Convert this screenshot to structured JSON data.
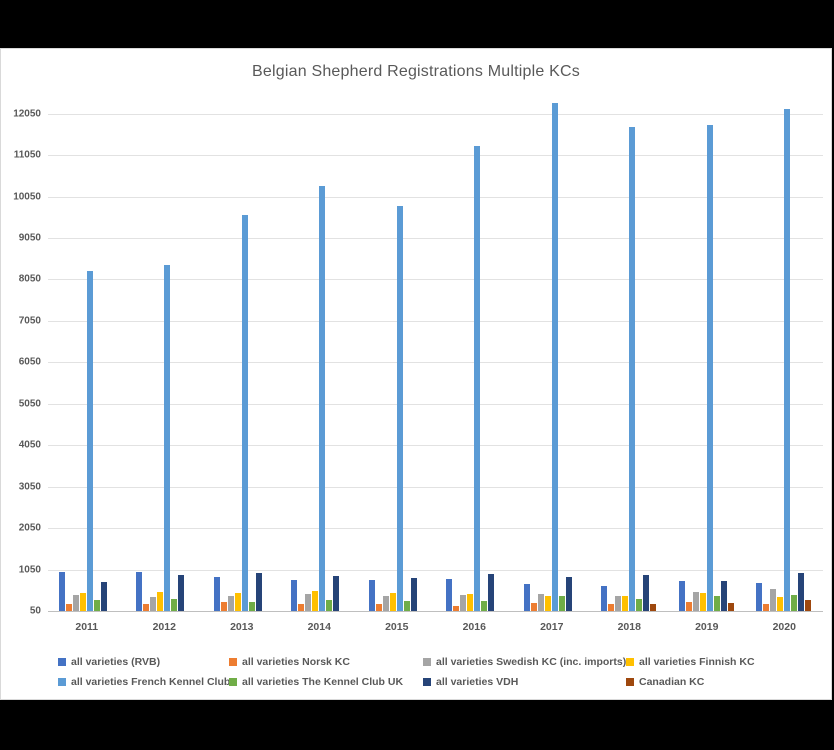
{
  "chart_data": {
    "type": "bar",
    "title": "Belgian Shepherd Registrations Multiple KCs",
    "categories": [
      "2011",
      "2012",
      "2013",
      "2014",
      "2015",
      "2016",
      "2017",
      "2018",
      "2019",
      "2020"
    ],
    "series": [
      {
        "name": "all varieties (RVB)",
        "color": "#4472C4",
        "values": [
          990,
          990,
          870,
          810,
          810,
          820,
          690,
          650,
          770,
          720
        ]
      },
      {
        "name": "all varieties Norsk KC",
        "color": "#ED7D31",
        "values": [
          220,
          210,
          270,
          230,
          210,
          170,
          250,
          210,
          270,
          220
        ]
      },
      {
        "name": "all varieties Swedish KC (inc. imports)",
        "color": "#A5A5A5",
        "values": [
          430,
          390,
          410,
          470,
          410,
          430,
          470,
          410,
          510,
          590
        ]
      },
      {
        "name": "all varieties Finnish KC",
        "color": "#FFC000",
        "values": [
          490,
          510,
          490,
          530,
          490,
          450,
          410,
          410,
          490,
          390
        ]
      },
      {
        "name": "all varieties French Kennel Club",
        "color": "#5B9BD5",
        "values": [
          8250,
          8400,
          9600,
          10300,
          9830,
          11270,
          12320,
          11740,
          11770,
          12160
        ]
      },
      {
        "name": "all varieties The Kennel Club UK",
        "color": "#70AD47",
        "values": [
          310,
          330,
          270,
          320,
          300,
          290,
          410,
          330,
          410,
          430
        ]
      },
      {
        "name": "all varieties VDH",
        "color": "#264478",
        "values": [
          750,
          920,
          970,
          890,
          840,
          945,
          880,
          910,
          770,
          960
        ]
      },
      {
        "name": "Canadian KC",
        "color": "#9E480E",
        "values": [
          null,
          null,
          null,
          null,
          null,
          null,
          null,
          230,
          250,
          310
        ]
      }
    ],
    "yticks": [
      50,
      1050,
      2050,
      3050,
      4050,
      5050,
      6050,
      7050,
      8050,
      9050,
      10050,
      11050,
      12050
    ],
    "ymin": 50,
    "ymax": 12550,
    "grid": true,
    "legend_position": "bottom",
    "legend_rows": 2,
    "legend_columns": 4
  }
}
